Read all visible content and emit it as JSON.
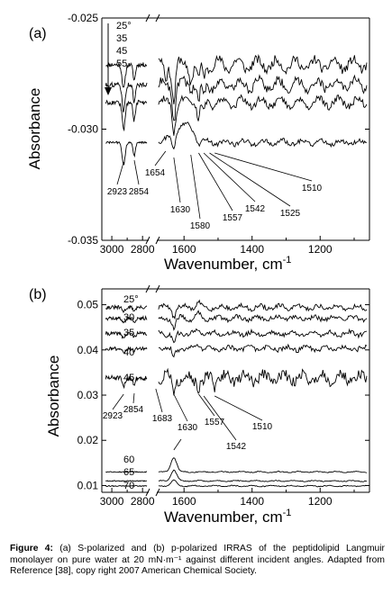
{
  "caption": {
    "label": "Figure 4:",
    "text": "(a) S-polarized and (b) p-polarized IRRAS of the peptidolipid Langmuir monolayer on pure water at 20 mN·m⁻¹ against different incident angles. Adapted from Reference [38], copy right 2007 American Chemical Society."
  },
  "chart_data": [
    {
      "type": "line",
      "panel_label": "(a)",
      "ylabel": "Absorbance",
      "xlabel": "Wavenumber, cm",
      "xlabel_sup": "-1",
      "x_axis": "reversed, broken between 2760 and 1680",
      "x_ticks": [
        "3000",
        "2800",
        "1600",
        "1400",
        "1200"
      ],
      "y_ticks": [
        "-0.025",
        "-0.030",
        "-0.035"
      ],
      "ylim": [
        -0.035,
        -0.025
      ],
      "series": [
        {
          "name": "25°",
          "baseline": -0.0271
        },
        {
          "name": "35",
          "baseline": -0.028
        },
        {
          "name": "45",
          "baseline": -0.0288
        },
        {
          "name": "55",
          "baseline": -0.0306
        }
      ],
      "annotations": [
        "2923",
        "2854",
        "1654",
        "1630",
        "1580",
        "1557",
        "1542",
        "1525",
        "1510"
      ]
    },
    {
      "type": "line",
      "panel_label": "(b)",
      "ylabel": "Absorbance",
      "xlabel": "Wavenumber, cm",
      "xlabel_sup": "-1",
      "x_axis": "reversed, broken between 2760 and 1680",
      "x_ticks": [
        "3000",
        "2800",
        "1600",
        "1400",
        "1200"
      ],
      "y_ticks": [
        "0.05",
        "0.04",
        "0.03",
        "0.02",
        "0.01"
      ],
      "ylim": [
        0.0085,
        0.0535
      ],
      "series": [
        {
          "name": "25°",
          "baseline": 0.0494
        },
        {
          "name": "30",
          "baseline": 0.047
        },
        {
          "name": "35",
          "baseline": 0.0436
        },
        {
          "name": "40",
          "baseline": 0.0403
        },
        {
          "name": "45",
          "baseline": 0.0338
        },
        {
          "name": "60",
          "baseline": 0.013
        },
        {
          "name": "65",
          "baseline": 0.011
        },
        {
          "name": "70",
          "baseline": 0.0099
        }
      ],
      "annotations": [
        "2923",
        "2854",
        "1683",
        "1630",
        "1557",
        "1542",
        "1510"
      ]
    }
  ]
}
